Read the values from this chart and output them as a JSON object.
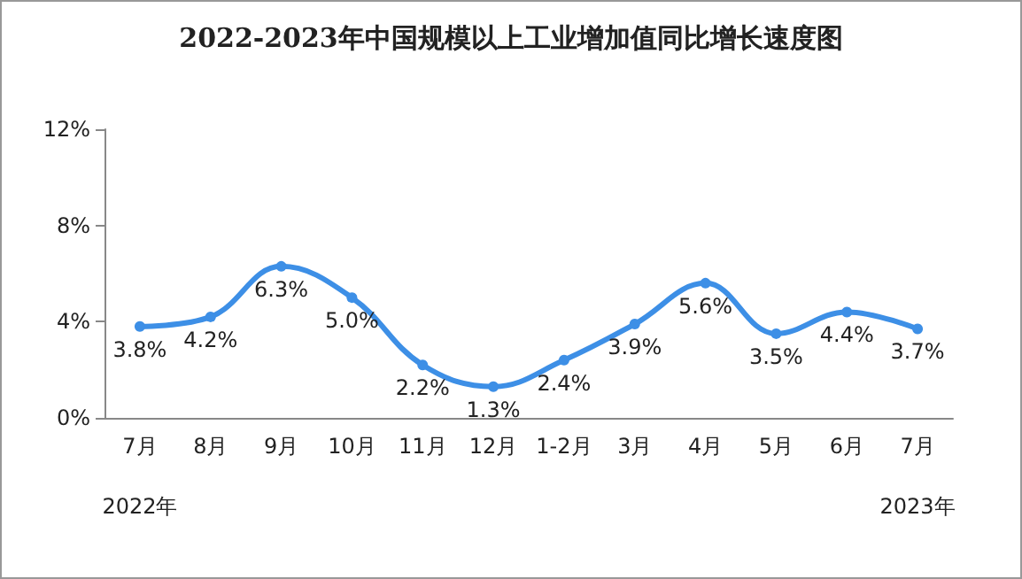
{
  "chart_data": {
    "type": "line",
    "title": "2022-2023年中国规模以上工业增加值同比增长速度图",
    "categories": [
      "7月",
      "8月",
      "9月",
      "10月",
      "11月",
      "12月",
      "1-2月",
      "3月",
      "4月",
      "5月",
      "6月",
      "7月"
    ],
    "series": [
      {
        "color": "#3d8fe6",
        "values": [
          3.8,
          4.2,
          6.3,
          5.0,
          2.2,
          1.3,
          2.4,
          3.9,
          5.6,
          3.5,
          4.4,
          3.7
        ],
        "value_labels": [
          "3.8%",
          "4.2%",
          "6.3%",
          "5.0%",
          "2.2%",
          "1.3%",
          "2.4%",
          "3.9%",
          "5.6%",
          "3.5%",
          "4.4%",
          "3.7%"
        ]
      }
    ],
    "ylim": [
      0,
      12
    ],
    "yticks": [
      {
        "value": 0,
        "label": "0%"
      },
      {
        "value": 4,
        "label": "4%"
      },
      {
        "value": 8,
        "label": "8%"
      },
      {
        "value": 12,
        "label": "12%"
      }
    ],
    "annotations": [
      "2022年",
      "2023年"
    ],
    "grid": false,
    "marker": "circle",
    "line_style": "solid"
  }
}
